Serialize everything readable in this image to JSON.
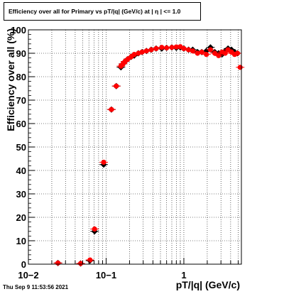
{
  "chart_data": {
    "type": "scatter",
    "title": "Efficiency over all for Primary vs pT/|q| (GeV/c) at |  η | <= 1.0",
    "xlabel": "pT/|q| (GeV/c)",
    "ylabel": "Efficiency over all (%)",
    "x_scale": "log",
    "xlim": [
      0.01,
      5.5
    ],
    "ylim": [
      0,
      100
    ],
    "x_tick_labels": [
      "10−2",
      "10−1",
      "1"
    ],
    "y_tick_labels": [
      "0",
      "10",
      "20",
      "30",
      "40",
      "50",
      "60",
      "70",
      "80",
      "90",
      "100"
    ],
    "grid": true,
    "series": [
      {
        "color": "#000000",
        "marker": "diamond",
        "points": [
          [
            0.024,
            0.5
          ],
          [
            0.047,
            0.3
          ],
          [
            0.062,
            1.5
          ],
          [
            0.071,
            14.0
          ],
          [
            0.093,
            42.5
          ],
          [
            0.117,
            66.0
          ],
          [
            0.135,
            76.0
          ],
          [
            0.155,
            84.0
          ],
          [
            0.165,
            85.5
          ],
          [
            0.175,
            86.5
          ],
          [
            0.19,
            87.5
          ],
          [
            0.21,
            88.5
          ],
          [
            0.23,
            89.0
          ],
          [
            0.26,
            90.0
          ],
          [
            0.29,
            90.5
          ],
          [
            0.33,
            91.0
          ],
          [
            0.38,
            91.5
          ],
          [
            0.44,
            92.0
          ],
          [
            0.52,
            92.0
          ],
          [
            0.6,
            92.3
          ],
          [
            0.7,
            92.5
          ],
          [
            0.8,
            92.3
          ],
          [
            0.9,
            92.5
          ],
          [
            1.0,
            92.0
          ],
          [
            1.15,
            91.5
          ],
          [
            1.3,
            91.5
          ],
          [
            1.5,
            90.5
          ],
          [
            1.7,
            90.5
          ],
          [
            1.95,
            91.0
          ],
          [
            2.2,
            92.5
          ],
          [
            2.5,
            90.5
          ],
          [
            2.8,
            90.0
          ],
          [
            3.1,
            89.5
          ],
          [
            3.4,
            91.0
          ],
          [
            3.7,
            92.0
          ],
          [
            4.1,
            91.5
          ],
          [
            4.5,
            90.5
          ],
          [
            4.9,
            90.0
          ]
        ]
      },
      {
        "color": "#ff0000",
        "marker": "circle",
        "points": [
          [
            0.024,
            0.5
          ],
          [
            0.047,
            0.3
          ],
          [
            0.062,
            1.8
          ],
          [
            0.071,
            15.0
          ],
          [
            0.093,
            43.5
          ],
          [
            0.117,
            66.0
          ],
          [
            0.135,
            76.0
          ],
          [
            0.155,
            84.5
          ],
          [
            0.165,
            85.5
          ],
          [
            0.175,
            86.5
          ],
          [
            0.19,
            87.5
          ],
          [
            0.21,
            88.5
          ],
          [
            0.23,
            89.5
          ],
          [
            0.26,
            90.0
          ],
          [
            0.29,
            90.5
          ],
          [
            0.33,
            91.0
          ],
          [
            0.38,
            91.5
          ],
          [
            0.44,
            92.0
          ],
          [
            0.52,
            92.5
          ],
          [
            0.6,
            92.3
          ],
          [
            0.7,
            92.5
          ],
          [
            0.8,
            92.7
          ],
          [
            0.9,
            92.8
          ],
          [
            1.0,
            92.0
          ],
          [
            1.15,
            91.5
          ],
          [
            1.3,
            91.0
          ],
          [
            1.5,
            90.0
          ],
          [
            1.7,
            90.5
          ],
          [
            1.95,
            89.5
          ],
          [
            2.2,
            91.5
          ],
          [
            2.5,
            90.0
          ],
          [
            2.8,
            89.0
          ],
          [
            3.1,
            90.5
          ],
          [
            3.4,
            90.0
          ],
          [
            3.7,
            91.5
          ],
          [
            4.1,
            90.5
          ],
          [
            4.5,
            89.5
          ],
          [
            4.9,
            90.0
          ],
          [
            5.3,
            84.0
          ]
        ]
      }
    ]
  },
  "footer": {
    "timestamp": "Thu Sep  9 11:53:56 2021"
  }
}
